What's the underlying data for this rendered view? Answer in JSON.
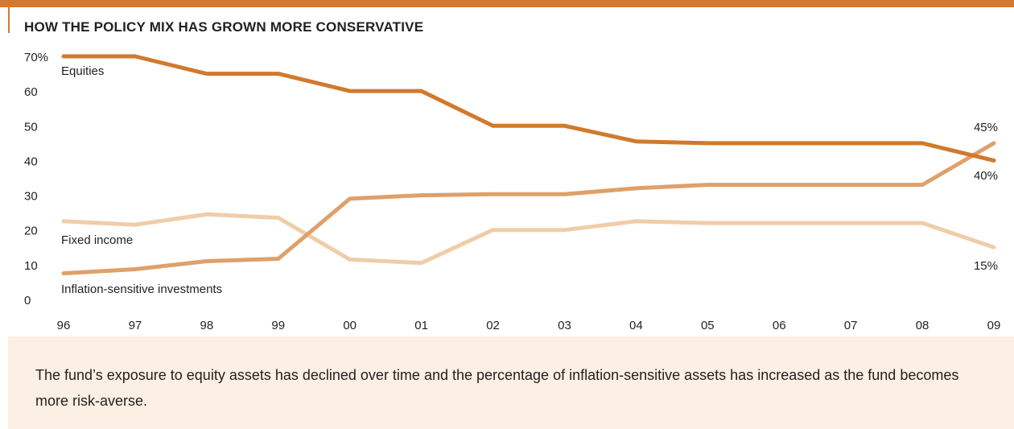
{
  "colors": {
    "accent": "#d5792f",
    "equities": "#d07a2d",
    "fixed_income": "#f0cda8",
    "inflation": "#dfa06a",
    "caption_bg": "#fcefe3"
  },
  "chart_data": {
    "type": "line",
    "title": "HOW THE POLICY MIX HAS GROWN MORE CONSERVATIVE",
    "categories": [
      "96",
      "97",
      "98",
      "99",
      "00",
      "01",
      "02",
      "03",
      "04",
      "05",
      "06",
      "07",
      "08",
      "09"
    ],
    "y_ticks": [
      "70%",
      "60",
      "50",
      "40",
      "30",
      "20",
      "10",
      "0"
    ],
    "ylim": [
      0,
      70
    ],
    "grid": false,
    "series": [
      {
        "name": "Equities",
        "color_key": "equities",
        "values": [
          70,
          70,
          65,
          65,
          60,
          60,
          50,
          50,
          45.5,
          45,
          45,
          45,
          45,
          40
        ],
        "end_label": "40%"
      },
      {
        "name": "Fixed income",
        "color_key": "fixed_income",
        "values": [
          22.5,
          21.5,
          24.5,
          23.5,
          11.5,
          10.5,
          20,
          20,
          22.5,
          22,
          22,
          22,
          22,
          15
        ],
        "end_label": "15%"
      },
      {
        "name": "Inflation-sensitive investments",
        "color_key": "inflation",
        "values": [
          7.5,
          8.7,
          11,
          11.7,
          29,
          30,
          30.3,
          30.3,
          32,
          33,
          33,
          33,
          33,
          45
        ],
        "end_label": "45%"
      }
    ]
  },
  "caption": "The fund’s exposure to equity assets has declined over time and the percentage of inflation-sensitive assets has increased as the fund becomes more risk-averse."
}
